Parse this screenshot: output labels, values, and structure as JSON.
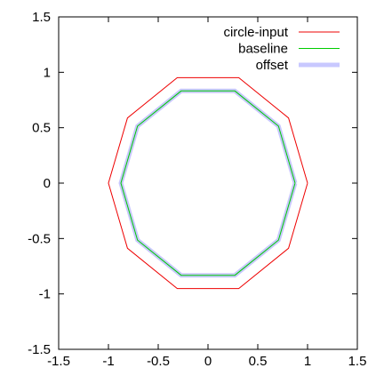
{
  "chart_data": {
    "type": "line",
    "title": "",
    "xlabel": "",
    "ylabel": "",
    "xlim": [
      -1.5,
      1.5
    ],
    "ylim": [
      -1.5,
      1.5
    ],
    "x_ticks": [
      "-1.5",
      "-1",
      "-0.5",
      "0",
      "0.5",
      "1",
      "1.5"
    ],
    "y_ticks": [
      "-1.5",
      "-1",
      "-0.5",
      "0",
      "0.5",
      "1",
      "1.5"
    ],
    "grid": false,
    "legend_position": "top-right",
    "series": [
      {
        "name": "circle-input",
        "color": "#ee0000",
        "x": [
          1.0,
          0.809,
          0.309,
          -0.309,
          -0.809,
          -1.0,
          -0.809,
          -0.309,
          0.309,
          0.809,
          1.0
        ],
        "y": [
          0.0,
          0.588,
          0.951,
          0.951,
          0.588,
          0.0,
          -0.588,
          -0.951,
          -0.951,
          -0.588,
          0.0
        ]
      },
      {
        "name": "baseline",
        "color": "#00cc00",
        "x": [
          0.875,
          0.708,
          0.27,
          -0.27,
          -0.708,
          -0.875,
          -0.708,
          -0.27,
          0.27,
          0.708,
          0.875
        ],
        "y": [
          0.0,
          0.514,
          0.832,
          0.832,
          0.514,
          0.0,
          -0.514,
          -0.832,
          -0.832,
          -0.514,
          0.0
        ]
      },
      {
        "name": "offset",
        "color": "#c8c8ff",
        "x": [
          0.875,
          0.708,
          0.27,
          -0.27,
          -0.708,
          -0.875,
          -0.708,
          -0.27,
          0.27,
          0.708,
          0.875
        ],
        "y": [
          0.0,
          0.514,
          0.832,
          0.832,
          0.514,
          0.0,
          -0.514,
          -0.832,
          -0.832,
          -0.514,
          0.0
        ]
      }
    ]
  }
}
